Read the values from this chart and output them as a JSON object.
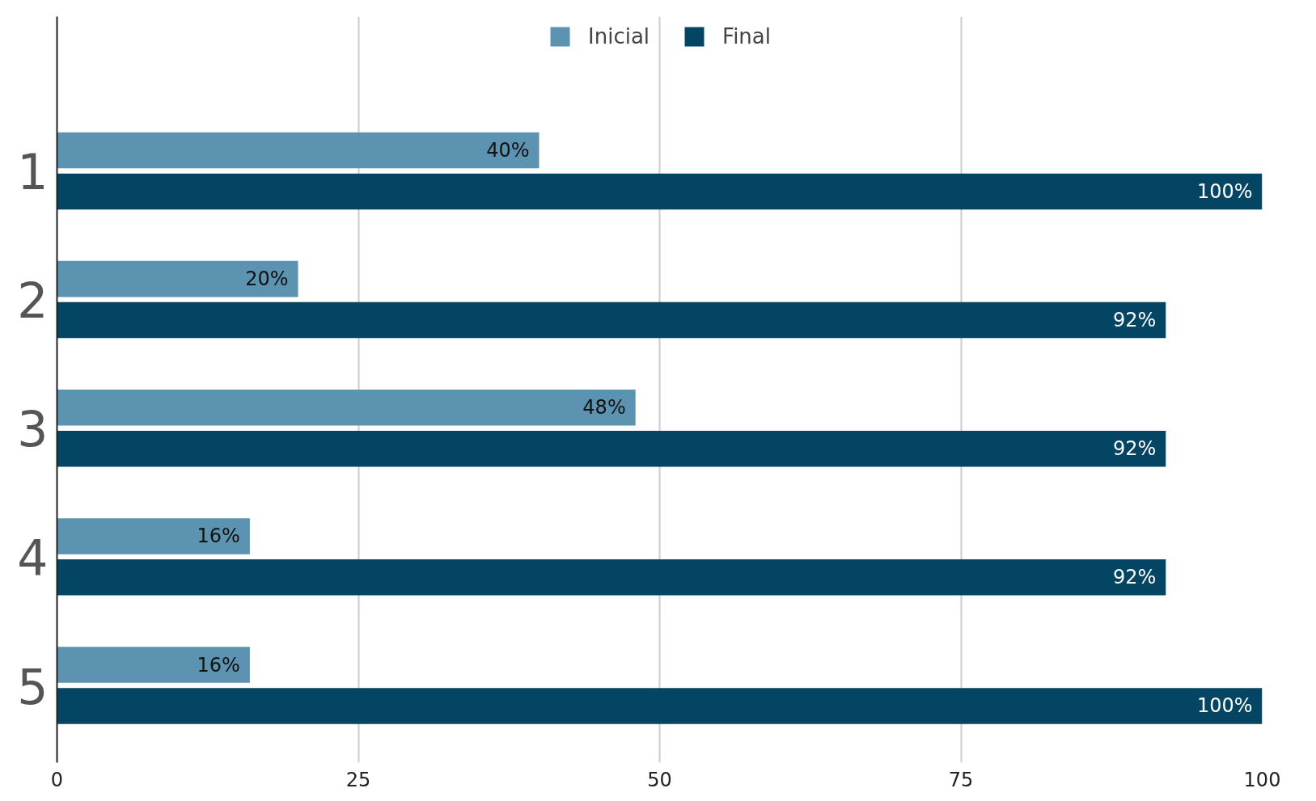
{
  "chart_data": {
    "type": "bar",
    "orientation": "horizontal",
    "categories": [
      "1",
      "2",
      "3",
      "4",
      "5"
    ],
    "series": [
      {
        "name": "Inicial",
        "color": "#5b93b0",
        "values": [
          40,
          20,
          48,
          16,
          16
        ],
        "value_labels": [
          "40%",
          "20%",
          "48%",
          "16%",
          "16%"
        ]
      },
      {
        "name": "Final",
        "color": "#034563",
        "values": [
          100,
          92,
          92,
          92,
          100
        ],
        "value_labels": [
          "100%",
          "92%",
          "92%",
          "92%",
          "100%"
        ]
      }
    ],
    "xlim": [
      0,
      100
    ],
    "xticks": [
      0,
      25,
      50,
      75,
      100
    ],
    "grid": "x",
    "legend": "top"
  }
}
